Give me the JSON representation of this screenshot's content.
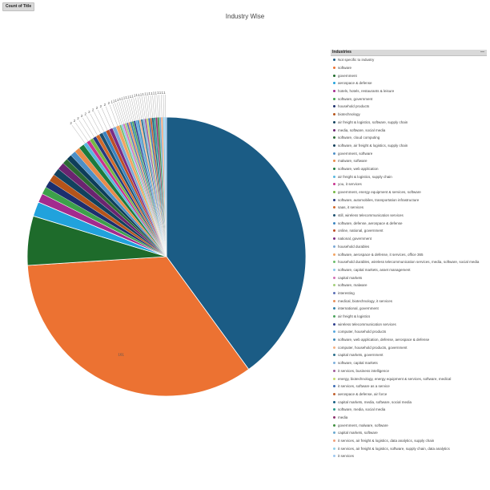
{
  "field_button": {
    "label": "Count of Title"
  },
  "chart_data": {
    "type": "pie",
    "title": "Industry Wise",
    "legend_title": "Industries",
    "legend_placement": "right",
    "data_labels": {
      "Not specific to industry": "",
      "software": "161"
    },
    "categories": [
      "Not specific to industry",
      "software",
      "government",
      "aerospace & defense",
      "hotels, hotels, restaurants & leisure",
      "software, government",
      "household products",
      "biotechnology",
      "air freight & logistics, software, supply chain",
      "media, software, social media",
      "software, cloud computing",
      "software, air freight & logistics, supply chain",
      "government, software",
      "malware, software",
      "software, web application",
      "air freight & logistics, supply chain",
      "you, it services",
      "government, energy equipment & services, software",
      "software, automobiles, transportation infrastructure",
      "saas, it services",
      "still, wireless telecommunication services",
      "software, defense, aerospace & defense",
      "online, national, government",
      "national, government",
      "household durables",
      "software, aerospace & defense, it services, office 365",
      "household durables, wireless telecommunication services, media, software, social media",
      "software, capital markets, asset management",
      "capital markets",
      "software, malware",
      "interesting",
      "medical, biotechnology, it services",
      "international, government",
      "air freight & logistics",
      "wireless telecommunication services",
      "computer, household products",
      "software, web application, defense, aerospace & defense",
      "computer, household products, government",
      "capital markets, government",
      "software, capital markets",
      "it services, business intelligence",
      "energy, biotechnology, energy equipment & services, software, medical",
      "it services, software as a service",
      "aerospace & defense, air force",
      "capital markets, media, software, social media",
      "software, media, social media",
      "media",
      "government, malware, software",
      "capital markets, software",
      "it services, air freight & logistics, data analytics, supply chain",
      "it services, air freight & logistics, software, supply chain, data analytics",
      "it services"
    ],
    "values": [
      189,
      161,
      27,
      8,
      5,
      4,
      4,
      4,
      4,
      4,
      3,
      3,
      3,
      3,
      3,
      2,
      2,
      2,
      2,
      2,
      2,
      2,
      2,
      2,
      2,
      2,
      1,
      1,
      1,
      1,
      1,
      1,
      1,
      1,
      1,
      1,
      1,
      1,
      1,
      1,
      1,
      1,
      1,
      1,
      1,
      1,
      1,
      1,
      1,
      1,
      1,
      1
    ],
    "colors": [
      "#1b5c85",
      "#ec7232",
      "#1e6b2b",
      "#21a2dc",
      "#a32a8e",
      "#3da14a",
      "#1c2f6e",
      "#b5541a",
      "#12415e",
      "#6b2470",
      "#2b6a32",
      "#0e3e5a",
      "#4d8fc6",
      "#e98b4a",
      "#1b7a3d",
      "#57b8e0",
      "#c8338f",
      "#74b843",
      "#273a80",
      "#d2692a",
      "#1d5170",
      "#3a84c0",
      "#bd4f27",
      "#7a2c85",
      "#7aa9d6",
      "#f2a463",
      "#6bbd6b",
      "#8bc8ec",
      "#d36fb5",
      "#a3cf7a",
      "#5c6fb5",
      "#e88f5a",
      "#2f80a8",
      "#4aa35c",
      "#2e3d8c",
      "#58a8de",
      "#3d89b8",
      "#f4b183",
      "#2a6e8c",
      "#7fb0dc",
      "#a05c9a",
      "#c2d96b",
      "#3c6cb4",
      "#c0602e",
      "#175f82",
      "#2a9b8c",
      "#8d2f6e",
      "#3f8f3f",
      "#6aa9d0",
      "#f0a07a",
      "#8fd0e8",
      "#9ec8f0"
    ]
  }
}
